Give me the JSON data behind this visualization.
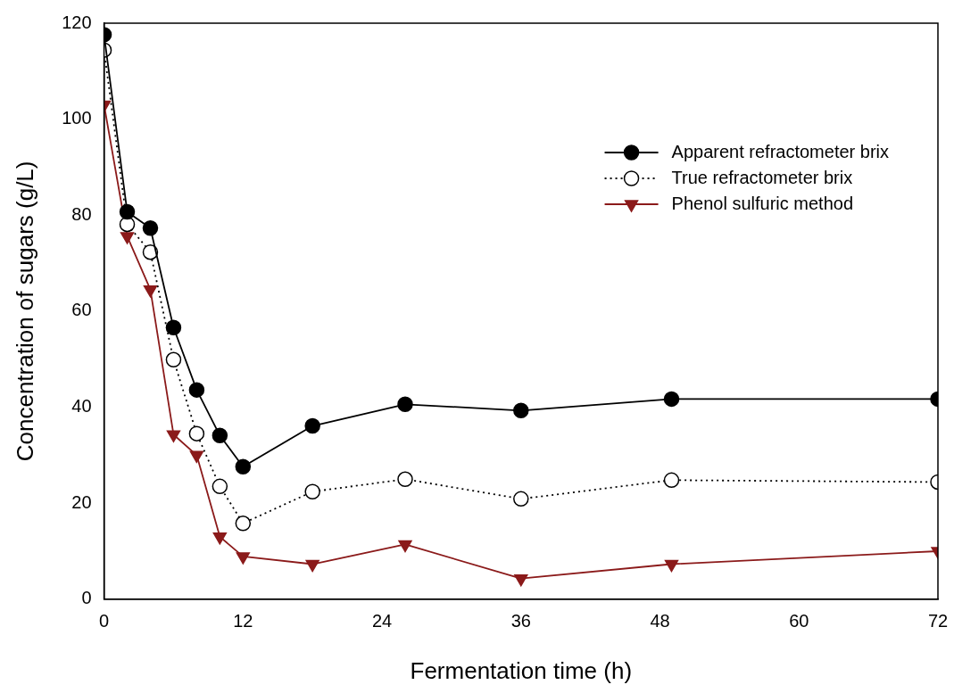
{
  "chart_data": {
    "type": "line",
    "xlabel": "Fermentation time (h)",
    "ylabel": "Concentration of sugars (g/L)",
    "xlim": [
      0,
      72
    ],
    "xticks": [
      0,
      12,
      24,
      36,
      48,
      60,
      72
    ],
    "ylim": [
      0,
      120
    ],
    "yticks": [
      0,
      20,
      40,
      60,
      80,
      100,
      120
    ],
    "grid": false,
    "legend": "top right",
    "series": [
      {
        "name": "Apparent refractometer brix",
        "color": "#000000",
        "line_style": "solid",
        "marker": "circle",
        "x": [
          0,
          2,
          4,
          6,
          8,
          10,
          12,
          18,
          26,
          36,
          49,
          72
        ],
        "values": [
          117.6,
          80.7,
          77.3,
          56.6,
          43.6,
          34.1,
          27.6,
          36.1,
          40.6,
          39.3,
          41.7,
          41.7
        ]
      },
      {
        "name": "True refractometer brix",
        "color": "#000000",
        "line_style": "dotted",
        "marker": "circle",
        "x": [
          0,
          2,
          4,
          6,
          8,
          10,
          12,
          18,
          26,
          36,
          49,
          72
        ],
        "values": [
          114.4,
          78.1,
          72.3,
          49.9,
          34.5,
          23.5,
          15.8,
          22.4,
          25,
          20.9,
          24.8,
          24.4
        ]
      },
      {
        "name": "Phenol sulfuric method",
        "color": "#8b1a1a",
        "line_style": "solid",
        "marker": "triangle",
        "x": [
          0,
          2,
          4,
          6,
          8,
          10,
          12,
          18,
          26,
          36,
          49,
          72
        ],
        "values": [
          103,
          75.6,
          64.5,
          34.3,
          30,
          13,
          8.9,
          7.3,
          11.4,
          4.3,
          7.3,
          10
        ]
      }
    ]
  }
}
